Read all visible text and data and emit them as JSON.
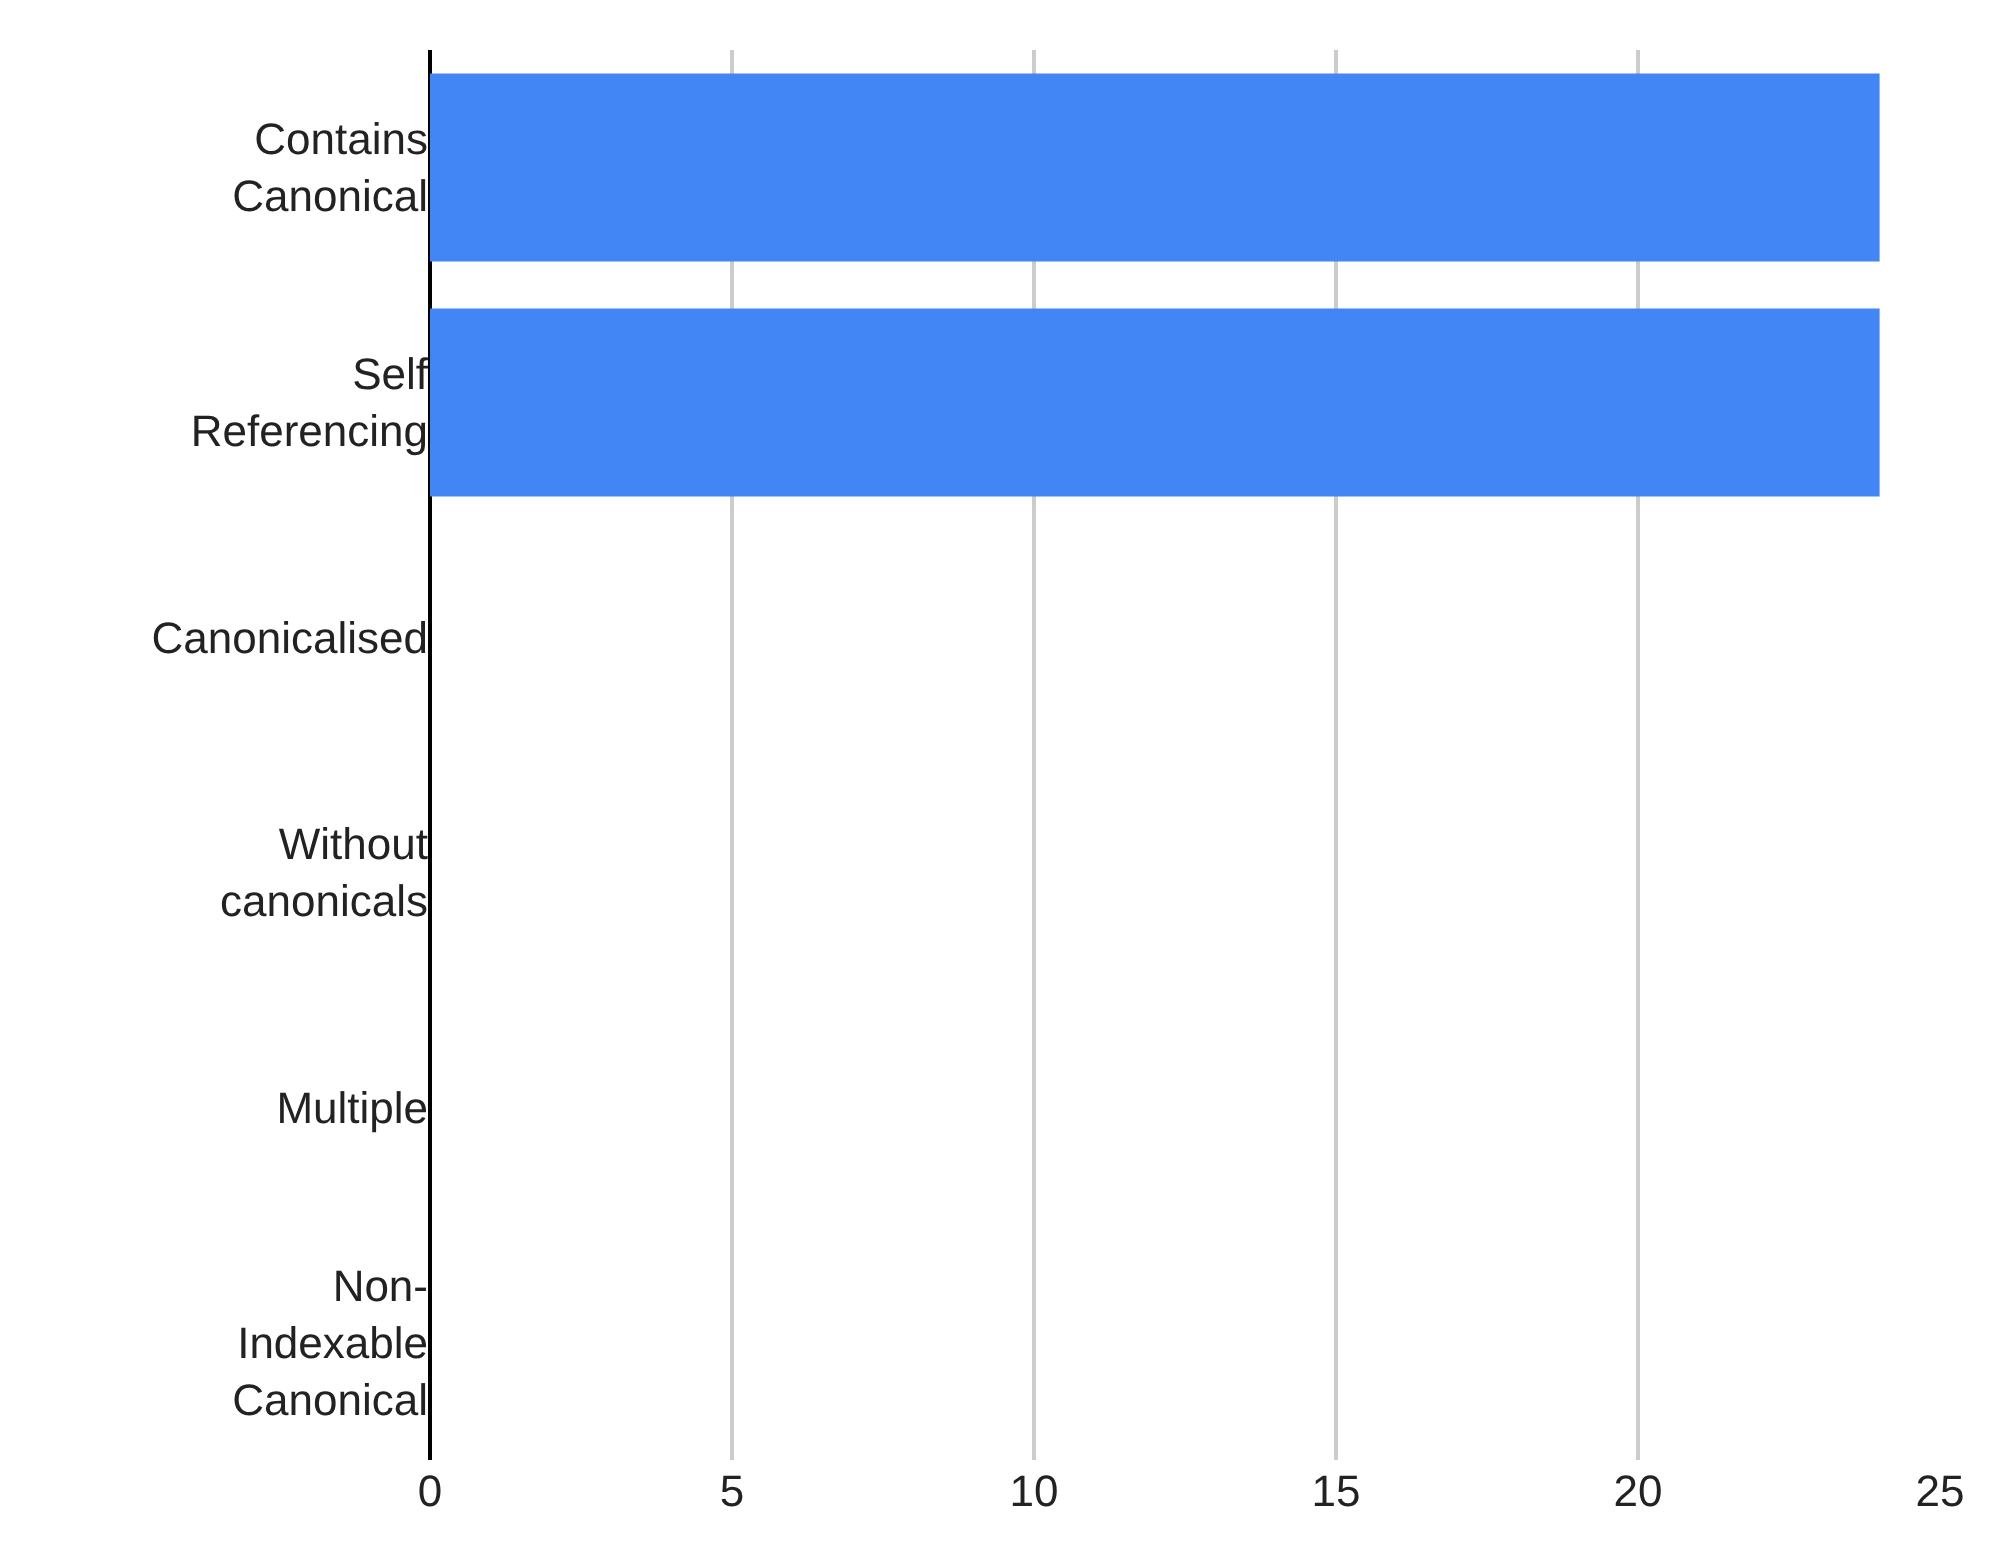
{
  "chart_data": {
    "type": "bar",
    "orientation": "horizontal",
    "categories": [
      "Contains Canonical",
      "Self Referencing",
      "Canonicalised",
      "Without canonicals",
      "Multiple",
      "Non-Indexable Canonical"
    ],
    "values": [
      24,
      24,
      0,
      0,
      0,
      0
    ],
    "color": "#4285f4",
    "xlim": [
      0,
      25
    ],
    "xticks": [
      0,
      5,
      10,
      15,
      20,
      25
    ],
    "grid": "x"
  }
}
